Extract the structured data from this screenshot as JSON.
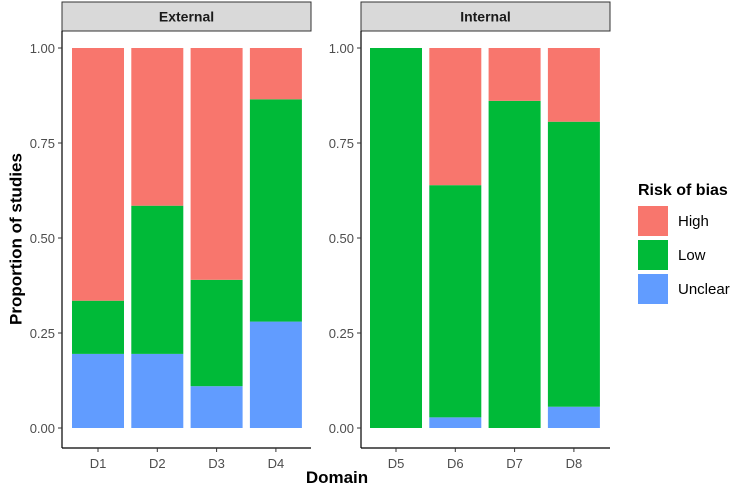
{
  "chart_data": {
    "type": "bar",
    "stacked": true,
    "xlabel": "Domain",
    "ylabel": "Proportion of studies",
    "ylim": [
      0,
      1
    ],
    "yticks": [
      "0.00",
      "0.25",
      "0.50",
      "0.75",
      "1.00"
    ],
    "legend": {
      "title": "Risk of bias",
      "position": "right",
      "entries": [
        {
          "name": "High",
          "color": "#F8766D"
        },
        {
          "name": "Low",
          "color": "#00BA38"
        },
        {
          "name": "Unclear",
          "color": "#619CFF"
        }
      ]
    },
    "facets": [
      {
        "label": "External",
        "categories": [
          "D1",
          "D2",
          "D3",
          "D4"
        ],
        "series": [
          {
            "name": "Unclear",
            "values": [
              0.195,
              0.195,
              0.11,
              0.28
            ]
          },
          {
            "name": "Low",
            "values": [
              0.14,
              0.39,
              0.28,
              0.585
            ]
          },
          {
            "name": "High",
            "values": [
              0.665,
              0.415,
              0.61,
              0.135
            ]
          }
        ]
      },
      {
        "label": "Internal",
        "categories": [
          "D5",
          "D6",
          "D7",
          "D8"
        ],
        "series": [
          {
            "name": "Unclear",
            "values": [
              0.0,
              0.028,
              0.0,
              0.056
            ]
          },
          {
            "name": "Low",
            "values": [
              1.0,
              0.611,
              0.861,
              0.75
            ]
          },
          {
            "name": "High",
            "values": [
              0.0,
              0.361,
              0.139,
              0.194
            ]
          }
        ]
      }
    ]
  }
}
